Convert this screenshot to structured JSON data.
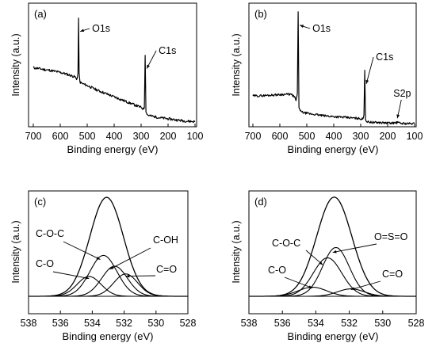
{
  "chart_data": [
    {
      "id": "a",
      "type": "line",
      "panel_label": "(a)",
      "xlabel": "Binding energy (eV)",
      "ylabel": "Intensity (a.u.)",
      "xlim": [
        700,
        100
      ],
      "x_ticks": [
        "700",
        "600",
        "500",
        "400",
        "300",
        "200",
        "100"
      ],
      "y_ticks_shown": false,
      "series": [
        {
          "points": [
            [
              700,
              1.62
            ],
            [
              680,
              1.6
            ],
            [
              660,
              1.57
            ],
            [
              640,
              1.55
            ],
            [
              620,
              1.52
            ],
            [
              600,
              1.49
            ],
            [
              580,
              1.45
            ],
            [
              560,
              1.4
            ],
            [
              545,
              1.36
            ],
            [
              538,
              1.3
            ],
            [
              534,
              1.45
            ],
            [
              532,
              3.05
            ],
            [
              530,
              1.45
            ],
            [
              527,
              1.22
            ],
            [
              520,
              1.18
            ],
            [
              500,
              1.12
            ],
            [
              480,
              1.05
            ],
            [
              460,
              0.98
            ],
            [
              440,
              0.92
            ],
            [
              420,
              0.86
            ],
            [
              400,
              0.8
            ],
            [
              380,
              0.74
            ],
            [
              360,
              0.68
            ],
            [
              340,
              0.62
            ],
            [
              320,
              0.56
            ],
            [
              300,
              0.5
            ],
            [
              292,
              0.46
            ],
            [
              288,
              0.5
            ],
            [
              285,
              2.0
            ],
            [
              282,
              0.4
            ],
            [
              278,
              0.3
            ],
            [
              270,
              0.27
            ],
            [
              250,
              0.24
            ],
            [
              230,
              0.21
            ],
            [
              200,
              0.18
            ],
            [
              170,
              0.15
            ],
            [
              140,
              0.12
            ],
            [
              100,
              0.1
            ]
          ]
        }
      ],
      "annotations": [
        {
          "text": "O1s",
          "x": 532
        },
        {
          "text": "C1s",
          "x": 285
        }
      ]
    },
    {
      "id": "b",
      "type": "line",
      "panel_label": "(b)",
      "xlabel": "Binding energy (eV)",
      "ylabel": "Intensity (a.u.)",
      "xlim": [
        700,
        100
      ],
      "x_ticks": [
        "700",
        "600",
        "500",
        "400",
        "300",
        "200",
        "100"
      ],
      "y_ticks_shown": false,
      "series": [
        {
          "points": [
            [
              700,
              0.95
            ],
            [
              680,
              0.95
            ],
            [
              660,
              0.96
            ],
            [
              640,
              0.97
            ],
            [
              620,
              0.98
            ],
            [
              600,
              0.99
            ],
            [
              580,
              1.0
            ],
            [
              560,
              1.0
            ],
            [
              550,
              0.95
            ],
            [
              545,
              0.9
            ],
            [
              540,
              0.8
            ],
            [
              535,
              1.0
            ],
            [
              532,
              3.7
            ],
            [
              529,
              0.6
            ],
            [
              524,
              0.45
            ],
            [
              510,
              0.4
            ],
            [
              490,
              0.37
            ],
            [
              470,
              0.35
            ],
            [
              450,
              0.32
            ],
            [
              430,
              0.3
            ],
            [
              400,
              0.28
            ],
            [
              370,
              0.26
            ],
            [
              340,
              0.24
            ],
            [
              310,
              0.22
            ],
            [
              292,
              0.2
            ],
            [
              288,
              0.3
            ],
            [
              285,
              1.8
            ],
            [
              282,
              0.2
            ],
            [
              278,
              0.12
            ],
            [
              270,
              0.1
            ],
            [
              250,
              0.09
            ],
            [
              220,
              0.08
            ],
            [
              200,
              0.07
            ],
            [
              180,
              0.07
            ],
            [
              166,
              0.08
            ],
            [
              164,
              0.12
            ],
            [
              162,
              0.08
            ],
            [
              150,
              0.06
            ],
            [
              125,
              0.05
            ],
            [
              100,
              0.05
            ]
          ]
        }
      ],
      "annotations": [
        {
          "text": "O1s",
          "x": 532
        },
        {
          "text": "C1s",
          "x": 285
        },
        {
          "text": "S2p",
          "x": 164
        }
      ]
    },
    {
      "id": "c",
      "type": "line",
      "panel_label": "(c)",
      "xlabel": "Binding energy (eV)",
      "ylabel": "Intensity (a.u.)",
      "xlim": [
        538,
        528
      ],
      "x_ticks": [
        "538",
        "536",
        "534",
        "532",
        "530",
        "528"
      ],
      "y_ticks_shown": false,
      "components": [
        {
          "label": "C-O",
          "center": 534.2,
          "amplitude": 0.46,
          "width": 0.75
        },
        {
          "label": "C-O-C",
          "center": 533.3,
          "amplitude": 0.95,
          "width": 0.85
        },
        {
          "label": "C-OH",
          "center": 532.6,
          "amplitude": 0.7,
          "width": 0.8
        },
        {
          "label": "C=O",
          "center": 531.9,
          "amplitude": 0.52,
          "width": 0.75
        }
      ],
      "envelope": {
        "center": 533.1,
        "amplitude": 2.3,
        "width": 1.05
      }
    },
    {
      "id": "d",
      "type": "line",
      "panel_label": "(d)",
      "xlabel": "Binding energy (eV)",
      "ylabel": "Intensity (a.u.)",
      "xlim": [
        538,
        528
      ],
      "x_ticks": [
        "538",
        "536",
        "534",
        "532",
        "530",
        "528"
      ],
      "y_ticks_shown": false,
      "components": [
        {
          "label": "C-O",
          "center": 534.2,
          "amplitude": 0.22,
          "width": 0.85
        },
        {
          "label": "C-O-C",
          "center": 533.3,
          "amplitude": 0.93,
          "width": 0.85
        },
        {
          "label": "O=S=O",
          "center": 532.8,
          "amplitude": 1.18,
          "width": 0.8
        },
        {
          "label": "C=O",
          "center": 531.9,
          "amplitude": 0.18,
          "width": 0.8
        }
      ],
      "envelope": {
        "center": 532.9,
        "amplitude": 2.4,
        "width": 1.05
      }
    }
  ]
}
